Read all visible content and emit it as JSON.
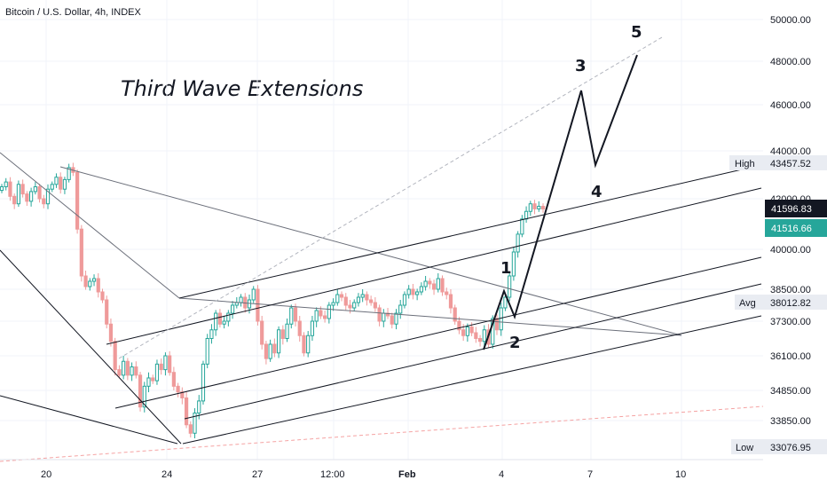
{
  "header": {
    "title": "Bitcoin / U.S. Dollar, 4h, INDEX"
  },
  "annotation": {
    "text": "Third Wave Extensions"
  },
  "chart_data": {
    "type": "candlestick",
    "title": "Bitcoin / U.S. Dollar, 4h, INDEX",
    "ylim": [
      32400,
      50800
    ],
    "y_ticks": [
      "50000.00",
      "48000.00",
      "46000.00",
      "44000.00",
      "42000.00",
      "40000.00",
      "38500.00",
      "37300.00",
      "36100.00",
      "34850.00",
      "33850.00"
    ],
    "x_ticks": [
      "20",
      "24",
      "27",
      "12:00",
      "Feb",
      "4",
      "7",
      "10"
    ],
    "price_tags": [
      {
        "label": "High",
        "value": "43457.52"
      },
      {
        "label": "",
        "value": "41596.83"
      },
      {
        "label": "",
        "value": "41516.66"
      },
      {
        "label": "Avg",
        "value": "38012.82"
      },
      {
        "label": "Low",
        "value": "33076.95"
      }
    ],
    "wave_labels": [
      "1",
      "2",
      "3",
      "4",
      "5"
    ],
    "colors": {
      "up": "#26a69a",
      "down": "#ef9a9a",
      "line": "#131722",
      "tag_dark": "#131722",
      "tag_green": "#26a69a"
    },
    "candles_close": [
      42500,
      42700,
      42100,
      41800,
      42600,
      42200,
      41900,
      42300,
      42500,
      42000,
      41800,
      42400,
      42600,
      42900,
      42400,
      42800,
      43300,
      43100,
      40800,
      39000,
      38600,
      38800,
      38900,
      38400,
      38100,
      37200,
      36600,
      35600,
      35400,
      35900,
      35400,
      35700,
      35400,
      34300,
      35000,
      35300,
      35200,
      35800,
      35600,
      36100,
      35500,
      35000,
      34800,
      34600,
      33700,
      33400,
      34100,
      34500,
      35800,
      36700,
      37000,
      37600,
      37200,
      37300,
      37600,
      37900,
      38000,
      38200,
      37800,
      38100,
      38500,
      37300,
      36500,
      36000,
      36500,
      36200,
      37000,
      36700,
      37200,
      37800,
      37300,
      36800,
      36200,
      36800,
      37300,
      37700,
      37500,
      37400,
      37900,
      38000,
      38300,
      38200,
      37900,
      37800,
      38000,
      38200,
      38300,
      38100,
      38000,
      37800,
      37300,
      37600,
      37500,
      37200,
      37600,
      37900,
      38300,
      38500,
      38300,
      38400,
      38600,
      38800,
      38700,
      38500,
      38900,
      38400,
      38300,
      37800,
      37300,
      37000,
      36800,
      37100,
      36900,
      36700,
      36600,
      37000,
      36500,
      37400,
      37000,
      37800,
      38200,
      39000,
      39900,
      40600,
      41200,
      41500,
      41800,
      41600,
      41700,
      41596.83
    ]
  }
}
